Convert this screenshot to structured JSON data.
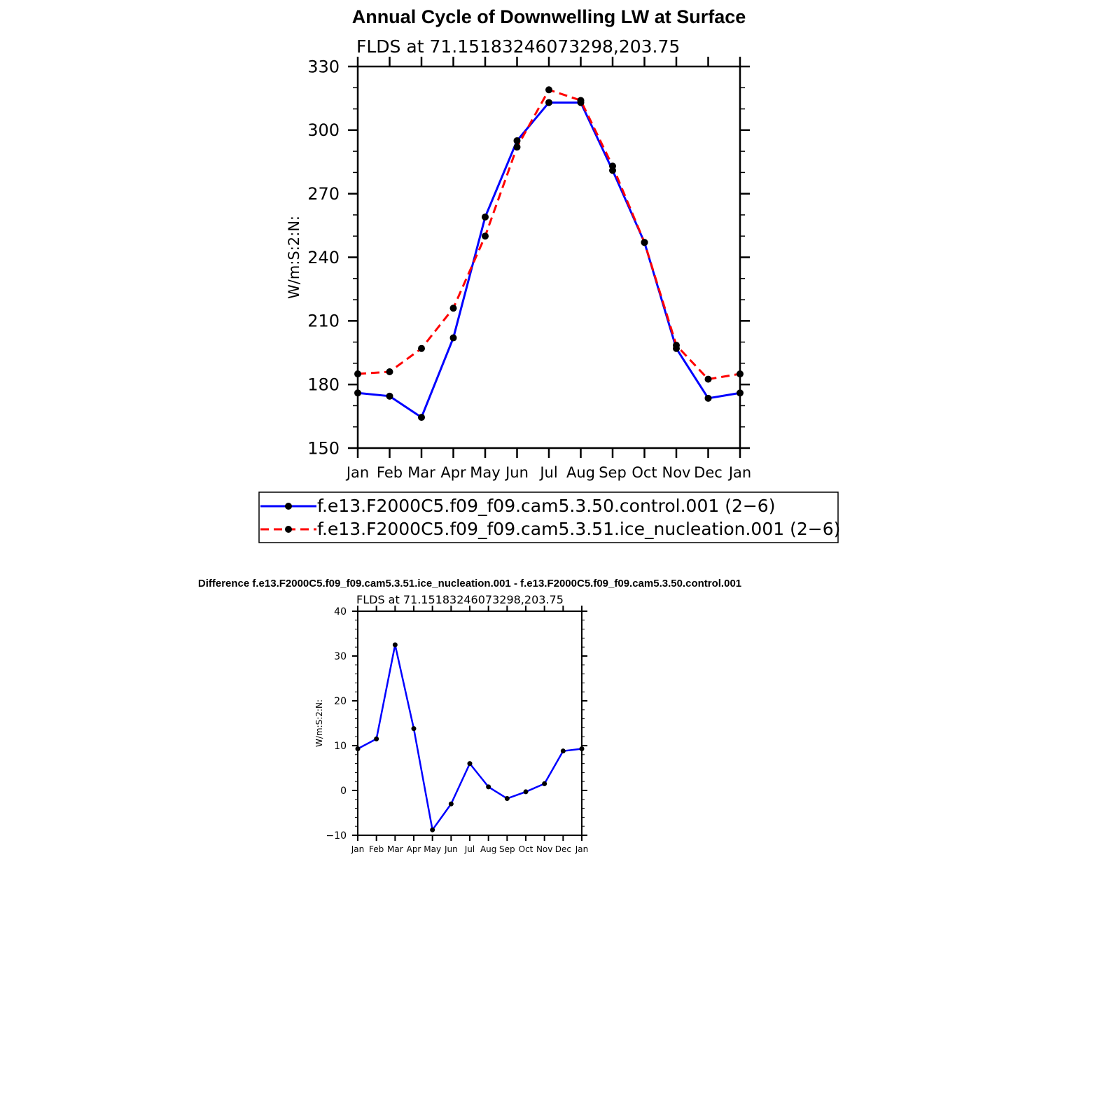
{
  "figure_title": "Annual Cycle of Downwelling LW at Surface",
  "chart_data": [
    {
      "type": "line",
      "title": "Annual Cycle of Downwelling LW at Surface",
      "subtitle": "FLDS at 71.15183246073298,203.75",
      "xlabel": "",
      "ylabel": "W/m:S:2:N:",
      "categories": [
        "Jan",
        "Feb",
        "Mar",
        "Apr",
        "May",
        "Jun",
        "Jul",
        "Aug",
        "Sep",
        "Oct",
        "Nov",
        "Dec",
        "Jan"
      ],
      "ylim": [
        150,
        330
      ],
      "yticks": [
        150,
        180,
        210,
        240,
        270,
        300,
        330
      ],
      "grid": false,
      "legend_position": "bottom",
      "series": [
        {
          "name": "f.e13.F2000C5.f09_f09.cam5.3.50.control.001 (2−6)",
          "color": "#0000ff",
          "dash": "solid",
          "values": [
            176,
            174.5,
            164.5,
            202,
            259,
            295,
            313,
            313,
            281,
            247,
            197,
            173.5,
            176
          ]
        },
        {
          "name": "f.e13.F2000C5.f09_f09.cam5.3.51.ice_nucleation.001 (2−6)",
          "color": "#ff0000",
          "dash": "dashed",
          "values": [
            185,
            186,
            197,
            216,
            250,
            292,
            319,
            314,
            283,
            247,
            198.5,
            182.5,
            185
          ]
        }
      ]
    },
    {
      "type": "line",
      "title": "Difference f.e13.F2000C5.f09_f09.cam5.3.51.ice_nucleation.001 - f.e13.F2000C5.f09_f09.cam5.3.50.control.001",
      "subtitle": "FLDS at 71.15183246073298,203.75",
      "xlabel": "",
      "ylabel": "W/m:S:2:N:",
      "categories": [
        "Jan",
        "Feb",
        "Mar",
        "Apr",
        "May",
        "Jun",
        "Jul",
        "Aug",
        "Sep",
        "Oct",
        "Nov",
        "Dec",
        "Jan"
      ],
      "ylim": [
        -10,
        40
      ],
      "yticks": [
        -10,
        0,
        10,
        20,
        30,
        40
      ],
      "ytick_labels": [
        "−10",
        "0",
        "10",
        "20",
        "30",
        "40"
      ],
      "grid": false,
      "series": [
        {
          "color": "#0000ff",
          "dash": "solid",
          "values": [
            9.3,
            11.5,
            32.5,
            13.8,
            -8.8,
            -3,
            6,
            0.8,
            -1.8,
            -0.3,
            1.5,
            8.8,
            9.3
          ]
        }
      ]
    }
  ]
}
